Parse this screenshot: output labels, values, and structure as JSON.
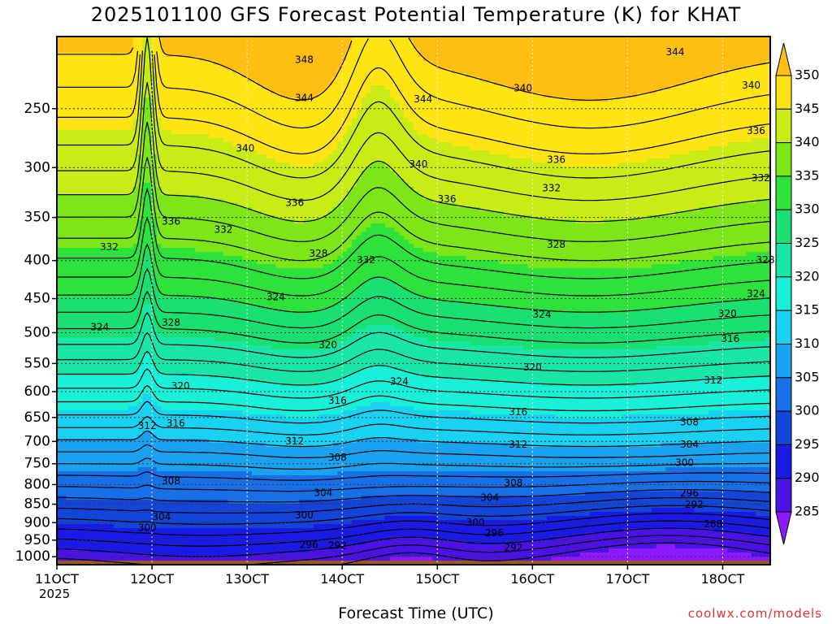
{
  "title": "2025101100 GFS Forecast Potential Temperature (K) for KHAT",
  "xlabel": "Forecast Time (UTC)",
  "credit": "coolwx.com/models",
  "year_label": "2025",
  "chart_data": {
    "type": "heatmap",
    "title": "2025101100 GFS Forecast Potential Temperature (K) for KHAT",
    "xlabel": "Forecast Time (UTC)",
    "ylabel": "",
    "x_ticks": [
      "11OCT",
      "12OCT",
      "13OCT",
      "14OCT",
      "15OCT",
      "16OCT",
      "17OCT",
      "18OCT"
    ],
    "x_range_days": [
      11,
      18.5
    ],
    "y_ticks": [
      250,
      300,
      350,
      400,
      450,
      500,
      550,
      600,
      650,
      700,
      750,
      800,
      850,
      900,
      950,
      1000
    ],
    "y_range_hPa": [
      200,
      1025
    ],
    "y_scale": "log",
    "y_reversed": true,
    "colorbar_levels": [
      285,
      290,
      295,
      300,
      305,
      310,
      315,
      320,
      325,
      330,
      335,
      340,
      345,
      350
    ],
    "colorbar_colors": [
      "#8c19ff",
      "#4b12e6",
      "#1a1ae6",
      "#1445d9",
      "#1870e8",
      "#1aa1f0",
      "#19d2f2",
      "#19f0d8",
      "#19e6a6",
      "#19e070",
      "#2ee23c",
      "#7de619",
      "#c9ec17",
      "#ffe414",
      "#ffbe12"
    ],
    "colorbar_extends": "both",
    "contour_interval": 2,
    "contour_labels": [
      {
        "text": "348",
        "day": 13.6,
        "p": 215
      },
      {
        "text": "344",
        "day": 17.5,
        "p": 210
      },
      {
        "text": "344",
        "day": 13.6,
        "p": 242
      },
      {
        "text": "344",
        "day": 14.85,
        "p": 243
      },
      {
        "text": "340",
        "day": 15.9,
        "p": 235
      },
      {
        "text": "340",
        "day": 18.3,
        "p": 233
      },
      {
        "text": "336",
        "day": 18.35,
        "p": 268
      },
      {
        "text": "340",
        "day": 12.98,
        "p": 283
      },
      {
        "text": "340",
        "day": 14.8,
        "p": 297
      },
      {
        "text": "336",
        "day": 16.25,
        "p": 293
      },
      {
        "text": "332",
        "day": 16.2,
        "p": 320
      },
      {
        "text": "332",
        "day": 18.4,
        "p": 310
      },
      {
        "text": "336",
        "day": 13.5,
        "p": 335
      },
      {
        "text": "336",
        "day": 15.1,
        "p": 331
      },
      {
        "text": "336",
        "day": 12.2,
        "p": 355
      },
      {
        "text": "332",
        "day": 12.75,
        "p": 364
      },
      {
        "text": "332",
        "day": 11.55,
        "p": 384
      },
      {
        "text": "328",
        "day": 13.75,
        "p": 392
      },
      {
        "text": "332",
        "day": 14.25,
        "p": 400
      },
      {
        "text": "328",
        "day": 16.25,
        "p": 381
      },
      {
        "text": "328",
        "day": 18.45,
        "p": 400
      },
      {
        "text": "324",
        "day": 13.3,
        "p": 448
      },
      {
        "text": "324",
        "day": 18.35,
        "p": 444
      },
      {
        "text": "324",
        "day": 16.1,
        "p": 473
      },
      {
        "text": "320",
        "day": 18.05,
        "p": 472
      },
      {
        "text": "328",
        "day": 12.2,
        "p": 485
      },
      {
        "text": "324",
        "day": 11.45,
        "p": 492
      },
      {
        "text": "316",
        "day": 18.08,
        "p": 510
      },
      {
        "text": "320",
        "day": 13.85,
        "p": 520
      },
      {
        "text": "320",
        "day": 16.0,
        "p": 557
      },
      {
        "text": "312",
        "day": 17.9,
        "p": 580
      },
      {
        "text": "324",
        "day": 14.6,
        "p": 582
      },
      {
        "text": "320",
        "day": 12.3,
        "p": 590
      },
      {
        "text": "316",
        "day": 13.95,
        "p": 618
      },
      {
        "text": "316",
        "day": 15.85,
        "p": 640
      },
      {
        "text": "308",
        "day": 17.65,
        "p": 660
      },
      {
        "text": "316",
        "day": 12.25,
        "p": 663
      },
      {
        "text": "312",
        "day": 11.95,
        "p": 668
      },
      {
        "text": "312",
        "day": 13.5,
        "p": 700
      },
      {
        "text": "312",
        "day": 15.85,
        "p": 707
      },
      {
        "text": "304",
        "day": 17.65,
        "p": 707
      },
      {
        "text": "308",
        "day": 13.95,
        "p": 736
      },
      {
        "text": "300",
        "day": 17.6,
        "p": 749
      },
      {
        "text": "308",
        "day": 15.8,
        "p": 797
      },
      {
        "text": "296",
        "day": 17.65,
        "p": 823
      },
      {
        "text": "308",
        "day": 12.2,
        "p": 792
      },
      {
        "text": "304",
        "day": 13.8,
        "p": 822
      },
      {
        "text": "304",
        "day": 15.55,
        "p": 834
      },
      {
        "text": "292",
        "day": 17.7,
        "p": 852
      },
      {
        "text": "300",
        "day": 13.6,
        "p": 880
      },
      {
        "text": "304",
        "day": 12.1,
        "p": 885
      },
      {
        "text": "300",
        "day": 15.4,
        "p": 900
      },
      {
        "text": "288",
        "day": 17.9,
        "p": 905
      },
      {
        "text": "296",
        "day": 15.6,
        "p": 930
      },
      {
        "text": "300",
        "day": 11.95,
        "p": 915
      },
      {
        "text": "296",
        "day": 13.65,
        "p": 965
      },
      {
        "text": "292",
        "day": 13.95,
        "p": 968
      },
      {
        "text": "292",
        "day": 15.8,
        "p": 973
      }
    ],
    "terrain": "surface below ~1012 hPa shaded brown",
    "grid": "dotted"
  }
}
